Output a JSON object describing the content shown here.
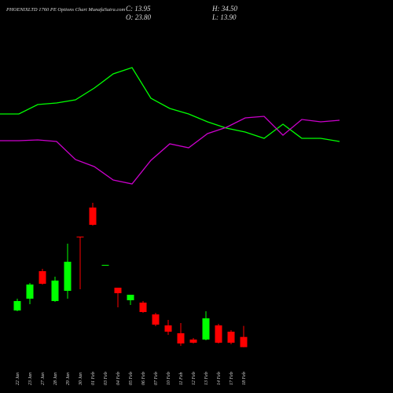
{
  "chart_data": [
    {
      "type": "candlestick",
      "title": "PHOENIXLTD 1760 PE Options Chart MunafaSutra.com",
      "summary": [
        "C: 13.95",
        "H: 34.50",
        "O: 23.80",
        "L: 13.90"
      ],
      "categories": [
        "22 Jan",
        "23 Jan",
        "27 Jan",
        "28 Jan",
        "29 Jan",
        "30 Jan",
        "01 Feb",
        "03 Feb",
        "04 Feb",
        "05 Feb",
        "06 Feb",
        "07 Feb",
        "10 Feb",
        "11 Feb",
        "12 Feb",
        "13 Feb",
        "14 Feb",
        "17 Feb",
        "18 Feb"
      ],
      "open": [
        49.4,
        60.8,
        87.4,
        58.5,
        68.4,
        120.8,
        148.9,
        93.0,
        71.4,
        59.3,
        57.0,
        45.6,
        35.0,
        27.4,
        21.3,
        21.3,
        35.0,
        28.9,
        23.8
      ],
      "high": [
        60.8,
        76.0,
        89.7,
        82.1,
        114.0,
        120.8,
        153.5,
        93.5,
        71.4,
        64.6,
        58.5,
        47.1,
        40.3,
        37.2,
        22.8,
        48.6,
        36.5,
        30.4,
        34.5
      ],
      "low": [
        48.6,
        55.5,
        74.5,
        57.8,
        60.8,
        69.9,
        131.5,
        93.0,
        52.4,
        54.7,
        47.1,
        34.2,
        25.8,
        15.2,
        17.5,
        20.5,
        17.5,
        16.7,
        13.9
      ],
      "close": [
        58.5,
        74.5,
        75.2,
        78.3,
        96.5,
        120.0,
        132.2,
        93.5,
        66.1,
        64.6,
        47.9,
        35.7,
        28.9,
        17.5,
        18.2,
        41.8,
        18.2,
        18.2,
        13.95
      ],
      "up_color": "#00ff00",
      "down_color": "#ff0000",
      "ylim": [
        0,
        190
      ]
    },
    {
      "type": "line",
      "series": [
        {
          "color": "#00ff00",
          "values": [
            52.5,
            52.5,
            58.5,
            59.5,
            61.5,
            69,
            78,
            82,
            62.5,
            56,
            52.5,
            47.5,
            43.5,
            41,
            37,
            46,
            37,
            37,
            35
          ]
        },
        {
          "color": "#cc00cc",
          "values": [
            35.5,
            35.5,
            36,
            35,
            23.5,
            19,
            10.5,
            8,
            23,
            33.5,
            31,
            40,
            44,
            50,
            51,
            39,
            49,
            47.5,
            48.5
          ]
        }
      ],
      "ylim": [
        0,
        100
      ]
    }
  ]
}
